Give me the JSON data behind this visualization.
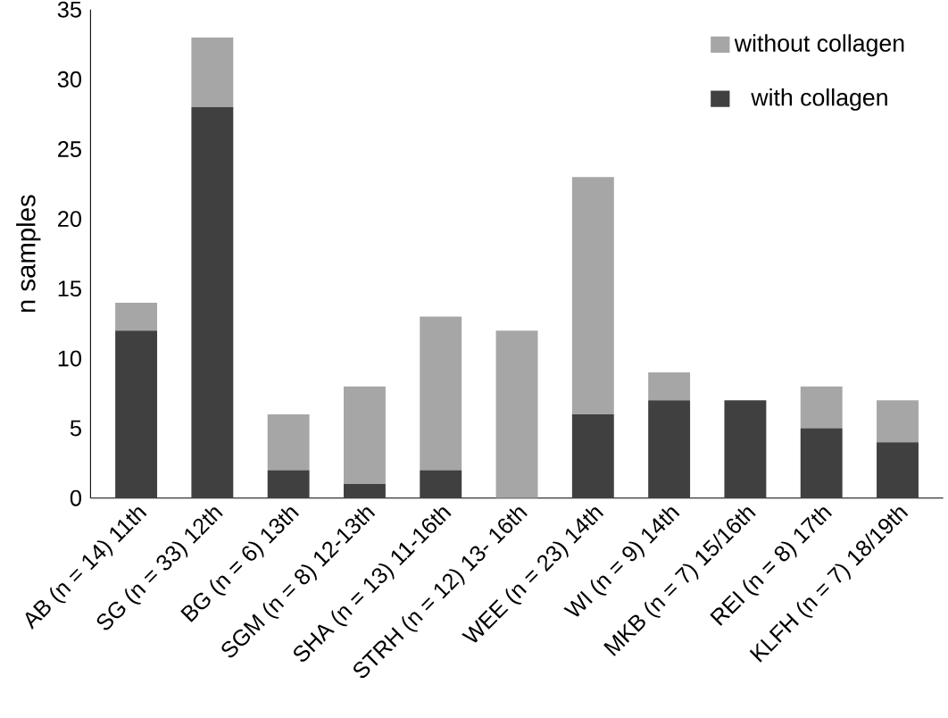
{
  "chart_data": {
    "type": "bar",
    "stacked": true,
    "ylabel": "n samples",
    "categories": [
      "AB (n = 14) 11th",
      "SG (n = 33) 12th",
      "BG (n = 6) 13th",
      "SGM (n = 8) 12-13th",
      "SHA (n = 13) 11-16th",
      "STRH (n = 12) 13- 16th",
      "WEE (n = 23) 14th",
      "WI (n = 9) 14th",
      "MKB (n = 7) 15/16th",
      "REI (n = 8) 17th",
      "KLFH (n = 7) 18/19th"
    ],
    "series": [
      {
        "name": "with collagen",
        "color": "#404040",
        "values": [
          12,
          28,
          2,
          1,
          2,
          0,
          6,
          7,
          7,
          5,
          4
        ]
      },
      {
        "name": "without collagen",
        "color": "#a6a6a6",
        "values": [
          2,
          5,
          4,
          7,
          11,
          12,
          17,
          2,
          0,
          3,
          3
        ]
      }
    ],
    "ylim": [
      0,
      35
    ],
    "yticks": [
      0,
      5,
      10,
      15,
      20,
      25,
      30,
      35
    ],
    "legend": "top right"
  }
}
